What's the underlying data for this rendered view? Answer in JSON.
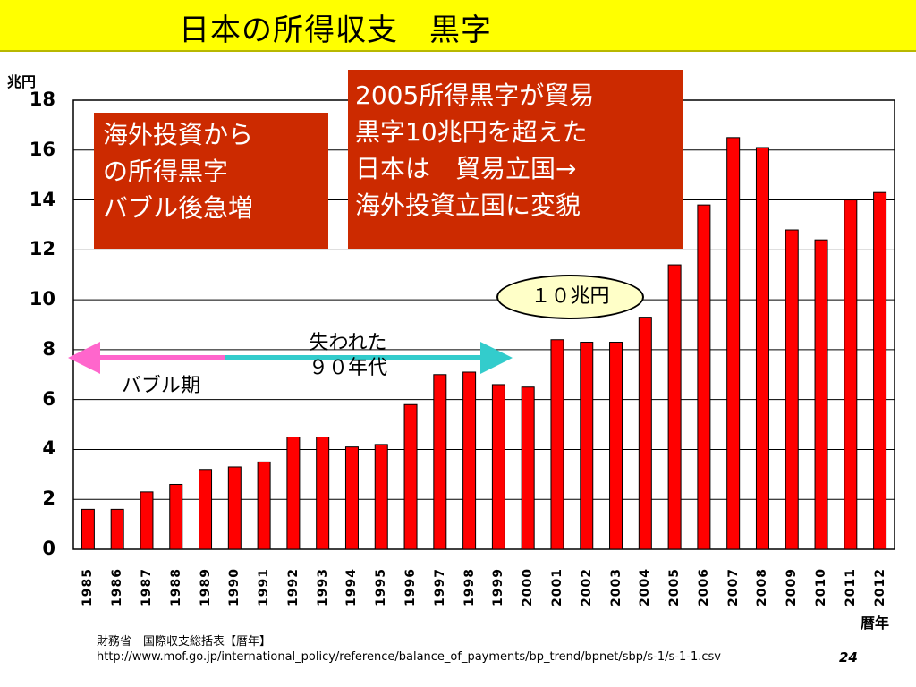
{
  "title": "日本の所得収支　黒字",
  "chart_data": {
    "type": "bar",
    "title": "日本の所得収支　黒字",
    "ylabel": "兆円",
    "xlabel": "暦年",
    "ylim": [
      0,
      18
    ],
    "yticks": [
      0,
      2,
      4,
      6,
      8,
      10,
      12,
      14,
      16,
      18
    ],
    "grid": true,
    "bar_color": "#ff0000",
    "categories": [
      "1985",
      "1986",
      "1987",
      "1988",
      "1989",
      "1990",
      "1991",
      "1992",
      "1993",
      "1994",
      "1995",
      "1996",
      "1997",
      "1998",
      "1999",
      "2000",
      "2001",
      "2002",
      "2003",
      "2004",
      "2005",
      "2006",
      "2007",
      "2008",
      "2009",
      "2010",
      "2011",
      "2012"
    ],
    "values": [
      1.6,
      1.6,
      2.3,
      2.6,
      3.2,
      3.3,
      3.5,
      4.5,
      4.5,
      4.1,
      4.2,
      5.8,
      7.0,
      7.1,
      6.6,
      6.5,
      8.4,
      8.3,
      8.3,
      9.3,
      11.4,
      13.8,
      16.5,
      16.1,
      12.8,
      12.4,
      14.0,
      14.3
    ]
  },
  "annotations": {
    "box1_lines": [
      "海外投資から",
      "の所得黒字",
      "バブル後急増"
    ],
    "box2_lines": [
      "2005所得黒字が貿易",
      "黒字10兆円を超えた",
      "日本は　貿易立国→",
      "海外投資立国に変貌"
    ],
    "oval_label": "１０兆円",
    "lost_decade_lines": [
      "失われた",
      "９０年代"
    ],
    "bubble_label": "バブル期",
    "box_color": "#cc2a00",
    "arrow_bubble_color": "#ff66cc",
    "arrow_lost_color": "#33cccc"
  },
  "source": {
    "line1": "財務省　国際収支総括表【暦年】",
    "line2": "http://www.mof.go.jp/international_policy/reference/balance_of_payments/bp_trend/bpnet/sbp/s-1/s-1-1.csv"
  },
  "page_number": "24"
}
